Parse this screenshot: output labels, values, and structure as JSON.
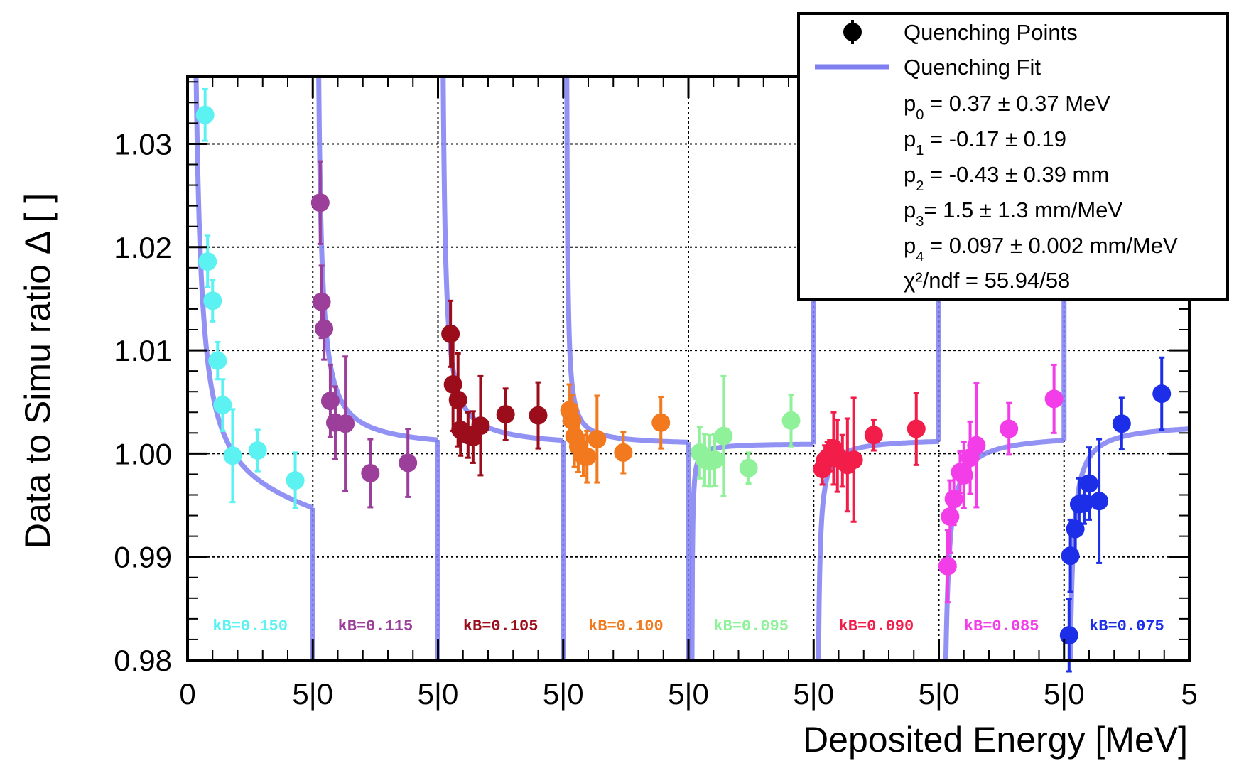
{
  "chart_data": {
    "type": "scatter",
    "xlabel": "Deposited Energy [MeV]",
    "ylabel": "Data to Simu ratio Δ [ ]",
    "ylim": [
      0.98,
      1.0365
    ],
    "x_range_per_panel": [
      0,
      5
    ],
    "panel_count": 8,
    "y_ticks": [
      "0.98",
      "0.99",
      "1.00",
      "1.01",
      "1.02",
      "1.03"
    ],
    "x_tick_labels": [
      "0",
      "5|0",
      "5|0",
      "5|0",
      "5|0",
      "5|0",
      "5|0",
      "5|0",
      "5"
    ],
    "grid": true,
    "legend": {
      "position": "top-right",
      "points_label": "Quenching Points",
      "fit_label": "Quenching Fit",
      "params": [
        {
          "sym": "p",
          "sub": "0",
          "text": " = 0.37 ± 0.37 MeV"
        },
        {
          "sym": "p",
          "sub": "1",
          "text": " = -0.17 ± 0.19"
        },
        {
          "sym": "p",
          "sub": "2",
          "text": " = -0.43 ± 0.39 mm"
        },
        {
          "sym": "p",
          "sub": "3",
          "text": "= 1.5 ± 1.3 mm/MeV"
        },
        {
          "sym": "p",
          "sub": "4",
          "text": " = 0.097 ± 0.002 mm/MeV"
        }
      ],
      "chi2_label": "χ²/ndf = 55.94/58"
    },
    "fit_color": "#7f7ff2",
    "series": [
      {
        "name": "kB=0.150",
        "color": "#5cf2f2",
        "points": [
          [
            0.7,
            1.0328,
            0.0025
          ],
          [
            0.8,
            1.0186,
            0.0025
          ],
          [
            1.0,
            1.0148,
            0.002
          ],
          [
            1.2,
            1.009,
            0.0018
          ],
          [
            1.4,
            1.0047,
            0.0025
          ],
          [
            1.8,
            0.9998,
            0.0045
          ],
          [
            2.8,
            1.0003,
            0.002
          ],
          [
            4.3,
            0.9974,
            0.0027
          ]
        ]
      },
      {
        "name": "kB=0.115",
        "color": "#9b3f9b",
        "points": [
          [
            0.3,
            1.0243,
            0.004
          ],
          [
            0.35,
            1.0147,
            0.0035
          ],
          [
            0.45,
            1.0121,
            0.003
          ],
          [
            0.7,
            1.0051,
            0.0035
          ],
          [
            0.9,
            1.003,
            0.0035
          ],
          [
            1.3,
            1.0029,
            0.0065
          ],
          [
            2.3,
            0.9981,
            0.0033
          ],
          [
            3.8,
            0.9991,
            0.0033
          ]
        ]
      },
      {
        "name": "kB=0.105",
        "color": "#9b0d1a",
        "points": [
          [
            0.5,
            1.0116,
            0.0032
          ],
          [
            0.6,
            1.0067,
            0.0045
          ],
          [
            0.8,
            1.0052,
            0.0045
          ],
          [
            0.9,
            1.0023,
            0.0025
          ],
          [
            1.2,
            1.0018,
            0.0022
          ],
          [
            1.4,
            1.0016,
            0.0025
          ],
          [
            1.7,
            1.0027,
            0.0048
          ],
          [
            2.7,
            1.0038,
            0.0025
          ],
          [
            4.0,
            1.0037,
            0.0032
          ]
        ]
      },
      {
        "name": "kB=0.100",
        "color": "#f2791d",
        "points": [
          [
            0.25,
            1.0042,
            0.0025
          ],
          [
            0.35,
            1.0032,
            0.0025
          ],
          [
            0.45,
            1.0017,
            0.003
          ],
          [
            0.6,
            1.0007,
            0.0025
          ],
          [
            0.8,
            0.9998,
            0.002
          ],
          [
            0.95,
            0.9997,
            0.0025
          ],
          [
            1.35,
            1.0014,
            0.0042
          ],
          [
            2.4,
            1.0001,
            0.002
          ],
          [
            3.9,
            1.003,
            0.0025
          ]
        ]
      },
      {
        "name": "kB=0.095",
        "color": "#8ff29a",
        "points": [
          [
            0.45,
            1.0001,
            0.0025
          ],
          [
            0.65,
            0.9994,
            0.0025
          ],
          [
            0.85,
            0.9993,
            0.0025
          ],
          [
            1.05,
            0.9994,
            0.0025
          ],
          [
            1.4,
            1.0017,
            0.0058
          ],
          [
            2.4,
            0.9986,
            0.0015
          ],
          [
            4.1,
            1.0032,
            0.0025
          ]
        ]
      },
      {
        "name": "kB=0.090",
        "color": "#f21d48",
        "points": [
          [
            0.35,
            0.9985,
            0.0015
          ],
          [
            0.45,
            0.9993,
            0.0015
          ],
          [
            0.55,
            0.9996,
            0.0015
          ],
          [
            0.65,
            0.9998,
            0.0015
          ],
          [
            0.8,
            1.0005,
            0.0035
          ],
          [
            0.95,
            0.9998,
            0.0035
          ],
          [
            1.15,
            0.9993,
            0.0025
          ],
          [
            1.35,
            0.9989,
            0.0045
          ],
          [
            1.6,
            0.9994,
            0.006
          ],
          [
            2.4,
            1.0018,
            0.0015
          ],
          [
            4.1,
            1.0024,
            0.0035
          ]
        ]
      },
      {
        "name": "kB=0.085",
        "color": "#f23de8",
        "points": [
          [
            0.35,
            0.9891,
            0.0035
          ],
          [
            0.45,
            0.9939,
            0.0035
          ],
          [
            0.6,
            0.9956,
            0.0025
          ],
          [
            0.85,
            0.9982,
            0.002
          ],
          [
            1.0,
            0.9979,
            0.0032
          ],
          [
            1.25,
            0.9996,
            0.0035
          ],
          [
            1.5,
            1.0008,
            0.006
          ],
          [
            2.8,
            1.0024,
            0.0025
          ],
          [
            4.6,
            1.0053,
            0.0033
          ]
        ]
      },
      {
        "name": "kB=0.075",
        "color": "#1d2ee8",
        "points": [
          [
            0.2,
            0.9824,
            0.0035
          ],
          [
            0.25,
            0.9901,
            0.0035
          ],
          [
            0.45,
            0.9927,
            0.0025
          ],
          [
            0.6,
            0.9951,
            0.0025
          ],
          [
            0.8,
            0.9952,
            0.002
          ],
          [
            1.0,
            0.9971,
            0.0035
          ],
          [
            1.4,
            0.9954,
            0.006
          ],
          [
            2.3,
            1.0029,
            0.0025
          ],
          [
            3.9,
            1.0058,
            0.0035
          ]
        ]
      }
    ]
  }
}
